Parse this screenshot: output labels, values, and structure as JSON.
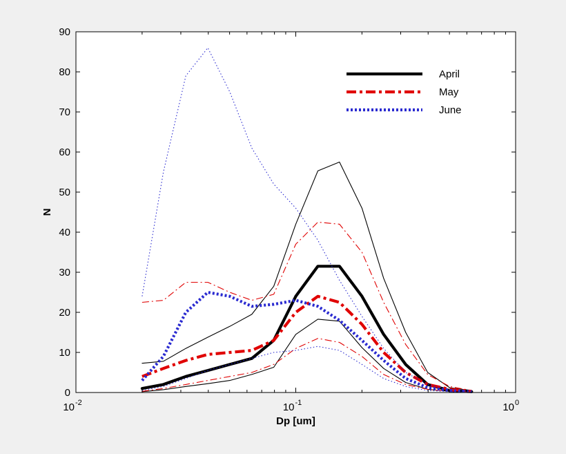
{
  "chart_data": {
    "type": "line",
    "title": "",
    "xlabel": "Dp [um]",
    "ylabel": "N",
    "xscale": "log",
    "xlim": [
      0.01,
      1
    ],
    "ylim": [
      0,
      90
    ],
    "grid": false,
    "legend_position": "top-right",
    "x_ticks": [
      {
        "base": "10",
        "exp": "-2",
        "value": 0.01
      },
      {
        "base": "10",
        "exp": "-1",
        "value": 0.1
      },
      {
        "base": "10",
        "exp": "0",
        "value": 1
      }
    ],
    "y_ticks": [
      "0",
      "10",
      "20",
      "30",
      "40",
      "50",
      "60",
      "70",
      "80",
      "90"
    ],
    "x": [
      0.02,
      0.025,
      0.0316,
      0.0398,
      0.0501,
      0.0631,
      0.0794,
      0.1,
      0.126,
      0.158,
      0.2,
      0.251,
      0.316,
      0.398,
      0.501,
      0.631
    ],
    "series": [
      {
        "name": "April",
        "role": "mean",
        "color": "#000000",
        "style": "solid",
        "values": [
          1,
          2,
          4,
          5.5,
          7,
          8.5,
          13,
          24,
          31.5,
          31.5,
          24,
          14.5,
          7,
          2,
          0.5,
          0.2
        ]
      },
      {
        "name": "April upper",
        "role": "bound",
        "color": "#000000",
        "style": "solid",
        "values": [
          7.3,
          7.8,
          11,
          13.8,
          16.5,
          19.5,
          26.5,
          42,
          55.3,
          57.5,
          46,
          28.5,
          15,
          5,
          1.2,
          0.5
        ]
      },
      {
        "name": "April lower",
        "role": "bound",
        "color": "#000000",
        "style": "solid",
        "values": [
          0.2,
          0.7,
          1.5,
          2.2,
          3,
          4.5,
          6.3,
          14.5,
          18.3,
          17.8,
          11.2,
          6,
          2.5,
          0.8,
          0.3,
          0.1
        ]
      },
      {
        "name": "May",
        "role": "mean",
        "color": "#e00000",
        "style": "dashdot",
        "values": [
          4,
          6,
          8,
          9.5,
          10,
          10.5,
          13,
          20,
          24,
          22.5,
          17,
          10,
          5,
          2,
          0.8,
          0.3
        ]
      },
      {
        "name": "May upper",
        "role": "bound",
        "color": "#e00000",
        "style": "dashdot",
        "values": [
          22.5,
          23,
          27.5,
          27.5,
          25,
          23,
          24.5,
          37,
          42.5,
          42,
          35,
          22.5,
          12,
          4.5,
          1.5,
          0.5
        ]
      },
      {
        "name": "May lower",
        "role": "bound",
        "color": "#e00000",
        "style": "dashdot",
        "values": [
          0.3,
          1,
          2,
          3,
          4,
          5,
          7,
          11,
          13.5,
          12.5,
          9,
          4.5,
          2,
          0.8,
          0.3,
          0.1
        ]
      },
      {
        "name": "June",
        "role": "mean",
        "color": "#2a2ad0",
        "style": "dotted",
        "values": [
          3,
          9,
          20,
          25,
          24,
          21.5,
          22,
          23,
          21.5,
          18,
          13,
          8,
          3.5,
          1.2,
          0.5,
          0.2
        ]
      },
      {
        "name": "June upper",
        "role": "bound",
        "color": "#2a2ad0",
        "style": "dotted",
        "values": [
          24,
          55,
          79,
          86,
          75,
          61,
          52,
          46,
          38,
          28,
          19,
          11,
          5,
          2,
          0.8,
          0.3
        ]
      },
      {
        "name": "June lower",
        "role": "bound",
        "color": "#2a2ad0",
        "style": "dotted",
        "values": [
          0.5,
          1.5,
          3.5,
          5.5,
          7,
          8.5,
          10,
          10.5,
          11.5,
          10.5,
          7,
          3.5,
          1.5,
          0.5,
          0.2,
          0.1
        ]
      }
    ]
  }
}
